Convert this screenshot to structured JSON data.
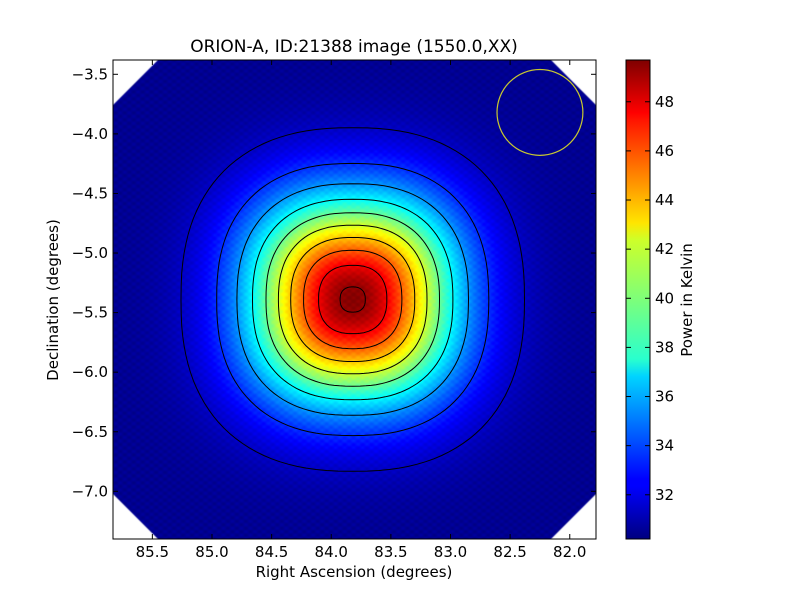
{
  "chart_data": {
    "type": "heatmap",
    "title": "ORION-A, ID:21388 image (1550.0,XX)",
    "xlabel": "Right Ascension (degrees)",
    "ylabel": "Declination (degrees)",
    "xlim": [
      85.83,
      81.78
    ],
    "ylim": [
      -7.4,
      -3.38
    ],
    "xticks": [
      85.5,
      85.0,
      84.5,
      84.0,
      83.5,
      83.0,
      82.5,
      82.0
    ],
    "xtick_labels": [
      "85.5",
      "85.0",
      "84.5",
      "84.0",
      "83.5",
      "83.0",
      "82.5",
      "82.0"
    ],
    "yticks": [
      -3.5,
      -4.0,
      -4.5,
      -5.0,
      -5.5,
      -6.0,
      -6.5,
      -7.0
    ],
    "ytick_labels": [
      "−3.5",
      "−4.0",
      "−4.5",
      "−5.0",
      "−5.5",
      "−6.0",
      "−6.5",
      "−7.0"
    ],
    "source_peak": {
      "ra": 83.82,
      "dec": -5.39,
      "value": 49.6
    },
    "background_level": 30.5,
    "contour_levels": [
      31.5,
      33.5,
      35.5,
      37.5,
      39.5,
      41.5,
      43.5,
      45.5,
      47.5,
      49.3
    ],
    "beam_circle": {
      "ra": 82.25,
      "dec": -3.82,
      "radius_deg": 0.36,
      "color": "#c8c830"
    },
    "colorbar": {
      "label": "Power in Kelvin",
      "vmin": 30.2,
      "vmax": 49.7,
      "ticks": [
        32,
        34,
        36,
        38,
        40,
        42,
        44,
        46,
        48
      ],
      "tick_labels": [
        "32",
        "34",
        "36",
        "38",
        "40",
        "42",
        "44",
        "46",
        "48"
      ],
      "colormap": "jet"
    },
    "grid": false
  }
}
